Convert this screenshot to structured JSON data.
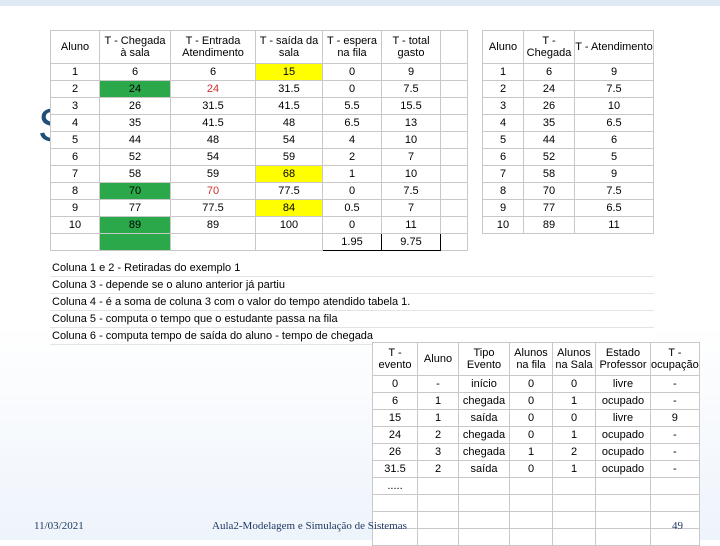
{
  "background_letter": "S",
  "table1": {
    "headers": [
      "Aluno",
      "T - Chegada à sala",
      "T - Entrada Atendimento",
      "T - saída da sala",
      "T - espera na fila",
      "T - total gasto"
    ],
    "rows": [
      [
        "1",
        "6",
        "6",
        "15",
        "0",
        "9"
      ],
      [
        "2",
        "24",
        "24",
        "31.5",
        "0",
        "7.5"
      ],
      [
        "3",
        "26",
        "31.5",
        "41.5",
        "5.5",
        "15.5"
      ],
      [
        "4",
        "35",
        "41.5",
        "48",
        "6.5",
        "13"
      ],
      [
        "5",
        "44",
        "48",
        "54",
        "4",
        "10"
      ],
      [
        "6",
        "52",
        "54",
        "59",
        "2",
        "7"
      ],
      [
        "7",
        "58",
        "59",
        "68",
        "1",
        "10"
      ],
      [
        "8",
        "70",
        "70",
        "77.5",
        "0",
        "7.5"
      ],
      [
        "9",
        "77",
        "77.5",
        "84",
        "0.5",
        "7"
      ],
      [
        "10",
        "89",
        "89",
        "100",
        "0",
        "11"
      ]
    ],
    "averages": [
      "1.95",
      "9.75"
    ]
  },
  "table2": {
    "headers": [
      "Aluno",
      "T - Chegada",
      "T - Atendimento"
    ],
    "rows": [
      [
        "1",
        "6",
        "9"
      ],
      [
        "2",
        "24",
        "7.5"
      ],
      [
        "3",
        "26",
        "10"
      ],
      [
        "4",
        "35",
        "6.5"
      ],
      [
        "5",
        "44",
        "6"
      ],
      [
        "6",
        "52",
        "5"
      ],
      [
        "7",
        "58",
        "9"
      ],
      [
        "8",
        "70",
        "7.5"
      ],
      [
        "9",
        "77",
        "6.5"
      ],
      [
        "10",
        "89",
        "11"
      ]
    ]
  },
  "notes": [
    "Coluna 1 e 2 - Retiradas do exemplo 1",
    "Coluna 3 - depende se o aluno anterior já partiu",
    "Coluna 4 - é a soma de coluna 3 com o valor do tempo atendido tabela 1.",
    "Coluna 5 - computa o tempo que o estudante passa na fila",
    "Coluna 6 - computa tempo de saída do aluno - tempo de chegada"
  ],
  "table3": {
    "headers": [
      "T - evento",
      "Aluno",
      "Tipo Evento",
      "Alunos na fila",
      "Alunos na Sala",
      "Estado Professor",
      "T - ocupação"
    ],
    "rows": [
      [
        "0",
        "-",
        "início",
        "0",
        "0",
        "livre",
        "-"
      ],
      [
        "6",
        "1",
        "chegada",
        "0",
        "1",
        "ocupado",
        "-"
      ],
      [
        "15",
        "1",
        "saída",
        "0",
        "0",
        "livre",
        "9"
      ],
      [
        "24",
        "2",
        "chegada",
        "0",
        "1",
        "ocupado",
        "-"
      ],
      [
        "26",
        "3",
        "chegada",
        "1",
        "2",
        "ocupado",
        "-"
      ],
      [
        "31.5",
        "2",
        "saída",
        "0",
        "1",
        "ocupado",
        "-"
      ],
      [
        ".....",
        "",
        "",
        "",
        "",
        "",
        ""
      ]
    ]
  },
  "footer": {
    "date": "11/03/2021",
    "title": "Aula2-Modelagem e Simulação de Sistemas",
    "page": "49"
  },
  "colors": {
    "green": "#2aa84a",
    "yellow": "#ffff00",
    "red": "#d0312d"
  }
}
